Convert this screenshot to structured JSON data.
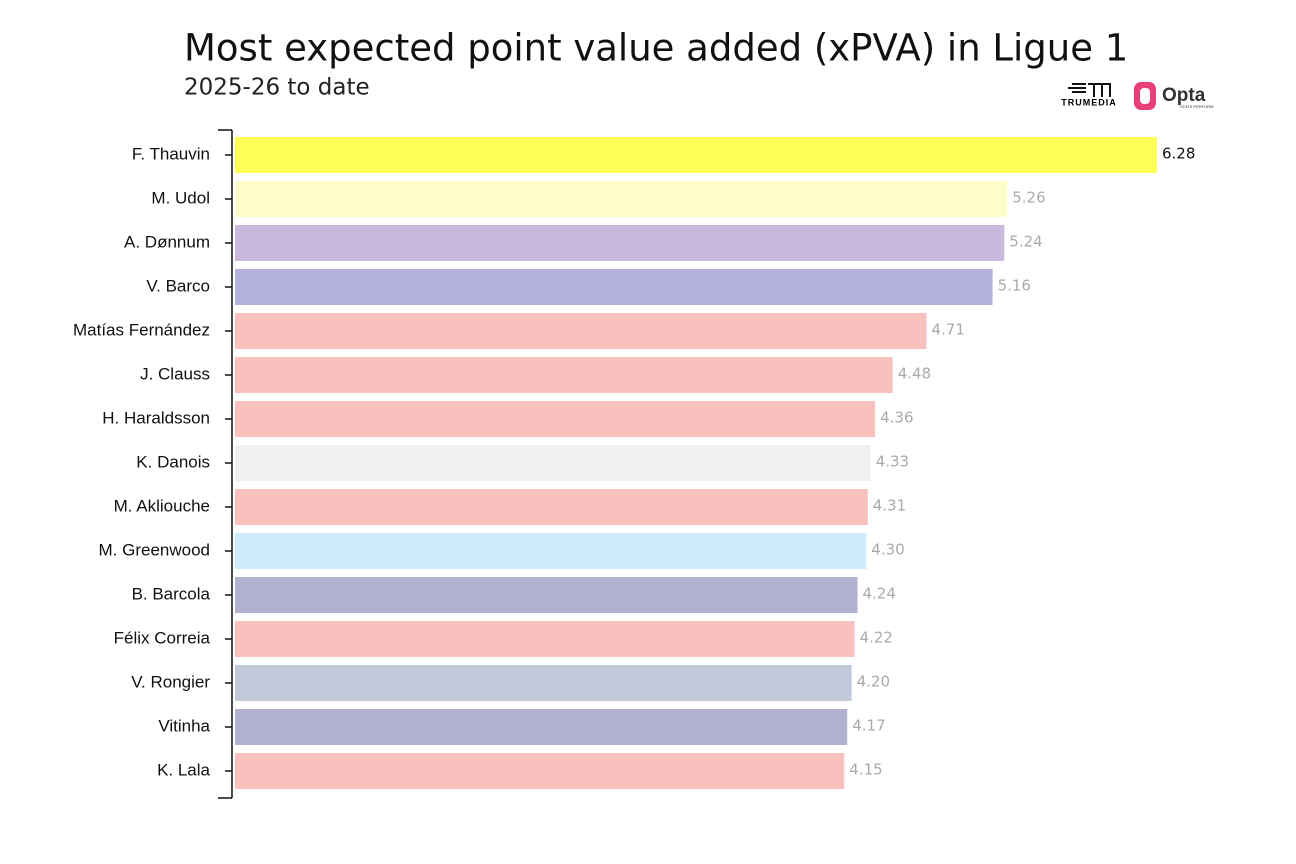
{
  "chart_data": {
    "type": "barh",
    "title": "Most expected point value added (xPVA) in Ligue 1",
    "subtitle": "2025-26 to date",
    "categories": [
      "F. Thauvin",
      "M. Udol",
      "A. Dønnum",
      "V. Barco",
      "Matías Fernández",
      "J. Clauss",
      "H. Haraldsson",
      "K. Danois",
      "M. Akliouche",
      "M. Greenwood",
      "B. Barcola",
      "Félix Correia",
      "V. Rongier",
      "Vitinha",
      "K. Lala"
    ],
    "values": [
      6.28,
      5.26,
      5.24,
      5.16,
      4.71,
      4.48,
      4.36,
      4.33,
      4.31,
      4.3,
      4.24,
      4.22,
      4.2,
      4.17,
      4.15
    ],
    "value_labels": [
      "6.28",
      "5.26",
      "5.24",
      "5.16",
      "4.71",
      "4.48",
      "4.36",
      "4.33",
      "4.31",
      "4.30",
      "4.24",
      "4.22",
      "4.20",
      "4.17",
      "4.15"
    ],
    "colors": [
      "#ffff55",
      "#fefec8",
      "#cbb8df",
      "#b1b1da",
      "#f8c1bd",
      "#f8c1bd",
      "#f8c1bd",
      "#f0f0f0",
      "#f8c1bd",
      "#cdedfc",
      "#b1b1d1",
      "#f8c1bd",
      "#c2c9da",
      "#b1b1d1",
      "#f8c1bd"
    ]
  },
  "logos": {
    "trumedia": "TRUMEDIA",
    "opta": "Opta",
    "opta_sub": "STATS PERFORM"
  }
}
